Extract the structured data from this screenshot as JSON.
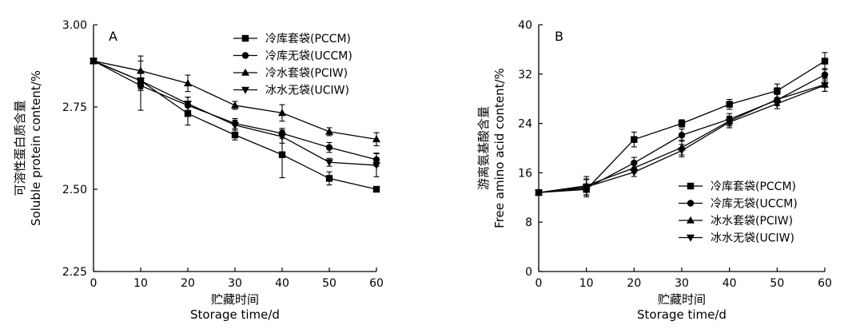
{
  "chart_data": [
    {
      "type": "line",
      "panel_label": "A",
      "xlabel_cn": "贮藏时间",
      "xlabel_en": "Storage time/d",
      "ylabel_cn": "可溶性蛋白质含量",
      "ylabel_en": "Soluble protein content/%",
      "x": [
        0,
        10,
        20,
        30,
        40,
        50,
        60
      ],
      "xlim": [
        0,
        60
      ],
      "ylim": [
        2.25,
        3.0
      ],
      "xticks": [
        "0",
        "10",
        "20",
        "30",
        "40",
        "50",
        "60"
      ],
      "yticks": [
        "2.25",
        "2.50",
        "2.75",
        "3.00"
      ],
      "ytick_values": [
        2.25,
        2.5,
        2.75,
        3.0
      ],
      "legend_position": "top-right",
      "grid": false,
      "series": [
        {
          "name": "冷库套袋(PCCM)",
          "marker": "square",
          "values": [
            2.89,
            2.83,
            2.73,
            2.665,
            2.605,
            2.533,
            2.5
          ],
          "errors": [
            0,
            0.025,
            0.035,
            0.015,
            0.07,
            0.02,
            0.008
          ]
        },
        {
          "name": "冷库无袋(UCCM)",
          "marker": "circle",
          "values": [
            2.89,
            2.815,
            2.755,
            2.7,
            2.67,
            2.627,
            2.59
          ],
          "errors": [
            0,
            0.075,
            0.025,
            0.015,
            0.015,
            0.015,
            0.02
          ]
        },
        {
          "name": "冷水套袋(PCIW)",
          "marker": "triangle-up",
          "values": [
            2.89,
            2.86,
            2.822,
            2.755,
            2.732,
            2.675,
            2.652
          ],
          "errors": [
            0,
            0.045,
            0.025,
            0.012,
            0.025,
            0.012,
            0.02
          ]
        },
        {
          "name": "冰水无袋(UCIW)",
          "marker": "triangle-down",
          "values": [
            2.89,
            2.83,
            2.76,
            2.695,
            2.66,
            2.582,
            2.573
          ],
          "errors": [
            0,
            0.03,
            0.02,
            0.015,
            0.02,
            0.012,
            0.035
          ]
        }
      ]
    },
    {
      "type": "line",
      "panel_label": "B",
      "xlabel_cn": "贮藏时间",
      "xlabel_en": "Storage time/d",
      "ylabel_cn": "游离氨基酸含量",
      "ylabel_en": "Free amino acid content/%",
      "x": [
        0,
        10,
        20,
        30,
        40,
        50,
        60
      ],
      "xlim": [
        0,
        60
      ],
      "ylim": [
        0,
        40
      ],
      "xticks": [
        "0",
        "10",
        "20",
        "30",
        "40",
        "50",
        "60"
      ],
      "yticks": [
        "0",
        "8",
        "16",
        "24",
        "32",
        "40"
      ],
      "ytick_values": [
        0,
        8,
        16,
        24,
        32,
        40
      ],
      "legend_position": "bottom-right",
      "grid": false,
      "series": [
        {
          "name": "冷库套袋(PCCM)",
          "marker": "square",
          "values": [
            12.8,
            13.3,
            21.4,
            24.0,
            27.1,
            29.3,
            34.1
          ],
          "errors": [
            0,
            0.9,
            1.2,
            0.6,
            0.8,
            1.1,
            1.4
          ]
        },
        {
          "name": "冷库无袋(UCCM)",
          "marker": "circle",
          "values": [
            12.8,
            13.5,
            17.6,
            22.1,
            24.7,
            27.8,
            31.9
          ],
          "errors": [
            0,
            1.4,
            0.9,
            1.0,
            0.9,
            0.9,
            1.0
          ]
        },
        {
          "name": "冰水套袋(PCIW)",
          "marker": "triangle-up",
          "values": [
            12.8,
            13.9,
            16.8,
            20.1,
            24.4,
            27.9,
            30.3
          ],
          "errors": [
            0,
            1.5,
            0.8,
            1.2,
            0.8,
            0.9,
            1.1
          ]
        },
        {
          "name": "冰水无袋(UCIW)",
          "marker": "triangle-down",
          "values": [
            12.8,
            13.7,
            16.1,
            19.6,
            24.2,
            27.2,
            30.2
          ],
          "errors": [
            0,
            1.3,
            0.7,
            1.0,
            0.9,
            0.8,
            1.0
          ]
        }
      ]
    }
  ]
}
